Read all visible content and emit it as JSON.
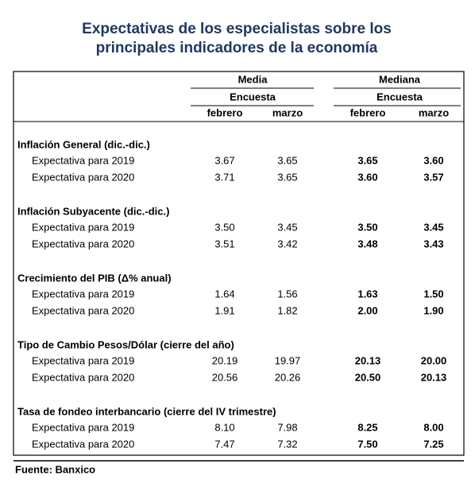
{
  "title": [
    "Expectativas de los especialistas sobre los",
    "principales indicadores de la economía"
  ],
  "header": {
    "groups": [
      {
        "label": "Media",
        "sub": "Encuesta",
        "cols": [
          "febrero",
          "marzo"
        ]
      },
      {
        "label": "Mediana",
        "sub": "Encuesta",
        "cols": [
          "febrero",
          "marzo"
        ]
      }
    ]
  },
  "sections": [
    {
      "title": "Inflación General (dic.-dic.)",
      "rows": [
        {
          "label": "Expectativa para 2019",
          "values": [
            "3.67",
            "3.65",
            "3.65",
            "3.60"
          ]
        },
        {
          "label": "Expectativa para 2020",
          "values": [
            "3.71",
            "3.65",
            "3.60",
            "3.57"
          ]
        }
      ]
    },
    {
      "title": "Inflación Subyacente (dic.-dic.)",
      "rows": [
        {
          "label": "Expectativa para 2019",
          "values": [
            "3.50",
            "3.45",
            "3.50",
            "3.45"
          ]
        },
        {
          "label": "Expectativa para 2020",
          "values": [
            "3.51",
            "3.42",
            "3.48",
            "3.43"
          ]
        }
      ]
    },
    {
      "title": "Crecimiento del PIB (Δ% anual)",
      "rows": [
        {
          "label": "Expectativa para 2019",
          "values": [
            "1.64",
            "1.56",
            "1.63",
            "1.50"
          ]
        },
        {
          "label": "Expectativa para 2020",
          "values": [
            "1.91",
            "1.82",
            "2.00",
            "1.90"
          ]
        }
      ]
    },
    {
      "title": "Tipo de Cambio Pesos/Dólar (cierre del año)",
      "rows": [
        {
          "label": "Expectativa para 2019",
          "values": [
            "20.19",
            "19.97",
            "20.13",
            "20.00"
          ]
        },
        {
          "label": "Expectativa para 2020",
          "values": [
            "20.56",
            "20.26",
            "20.50",
            "20.13"
          ]
        }
      ]
    },
    {
      "title": "Tasa de fondeo interbancario (cierre del IV trimestre)",
      "rows": [
        {
          "label": "Expectativa para 2019",
          "values": [
            "8.10",
            "7.98",
            "8.25",
            "8.00"
          ]
        },
        {
          "label": "Expectativa para 2020",
          "values": [
            "7.47",
            "7.32",
            "7.50",
            "7.25"
          ]
        }
      ]
    }
  ],
  "source": "Fuente: Banxico"
}
